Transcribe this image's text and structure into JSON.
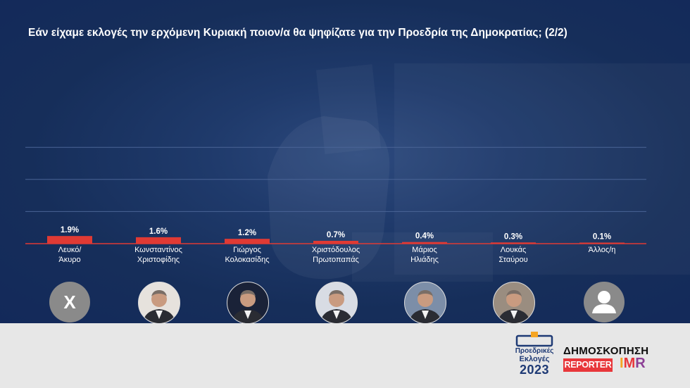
{
  "header": {
    "title": "Εάν είχαμε εκλογές την ερχόμενη Κυριακή ποιον/α θα ψηφίζατε για την Προεδρία της Δημοκρατίας; (2/2)"
  },
  "chart_data": {
    "type": "bar",
    "title": "Εάν είχαμε εκλογές την ερχόμενη Κυριακή ποιον/α θα ψηφίζατε για την Προεδρία της Δημοκρατίας; (2/2)",
    "categories": [
      [
        "Λευκό/",
        "Άκυρο"
      ],
      [
        "Κωνσταντίνος",
        "Χριστοφίδης"
      ],
      [
        "Γιώργος",
        "Κολοκασίδης"
      ],
      [
        "Χριστόδουλος",
        "Πρωτοπαπάς"
      ],
      [
        "Μάριος",
        "Ηλιάδης"
      ],
      [
        "Λουκάς",
        "Σταύρου"
      ],
      [
        "Άλλος/η"
      ]
    ],
    "values": [
      1.9,
      1.6,
      1.2,
      0.7,
      0.4,
      0.3,
      0.1
    ],
    "value_labels": [
      "1.9%",
      "1.6%",
      "1.2%",
      "0.7%",
      "0.4%",
      "0.3%",
      "0.1%"
    ],
    "ylim": [
      0,
      25
    ],
    "grid": true,
    "bar_color": "#e03a34",
    "gridline_color": "#4a6496"
  },
  "photos": [
    {
      "name": "Λευκό/Άκυρο",
      "icon": "x-icon",
      "glyph": "X"
    },
    {
      "name": "Κωνσταντίνος Χριστοφίδης",
      "icon": "candidate-photo"
    },
    {
      "name": "Γιώργος Κολοκασίδης",
      "icon": "candidate-photo"
    },
    {
      "name": "Χριστόδουλος Πρωτοπαπάς",
      "icon": "candidate-photo"
    },
    {
      "name": "Μάριος Ηλιάδης",
      "icon": "candidate-photo"
    },
    {
      "name": "Λουκάς Σταύρου",
      "icon": "candidate-photo"
    },
    {
      "name": "Άλλος/η",
      "icon": "generic-person-icon"
    }
  ],
  "footer": {
    "election_logo": {
      "line1": "Προεδρικές",
      "line2": "Εκλογές",
      "year": "2023"
    },
    "poll_label": "ΔΗΜΟΣΚΟΠΗΣΗ",
    "reporter": "REPORTER",
    "imr": {
      "i": "I",
      "m": "M",
      "r": "R"
    }
  },
  "colors": {
    "background_dark": "#162e5a",
    "footer_bg": "#e7e7e7",
    "accent_red": "#e03a34",
    "text_white": "#ffffff",
    "logo_blue": "#1e3a75"
  }
}
